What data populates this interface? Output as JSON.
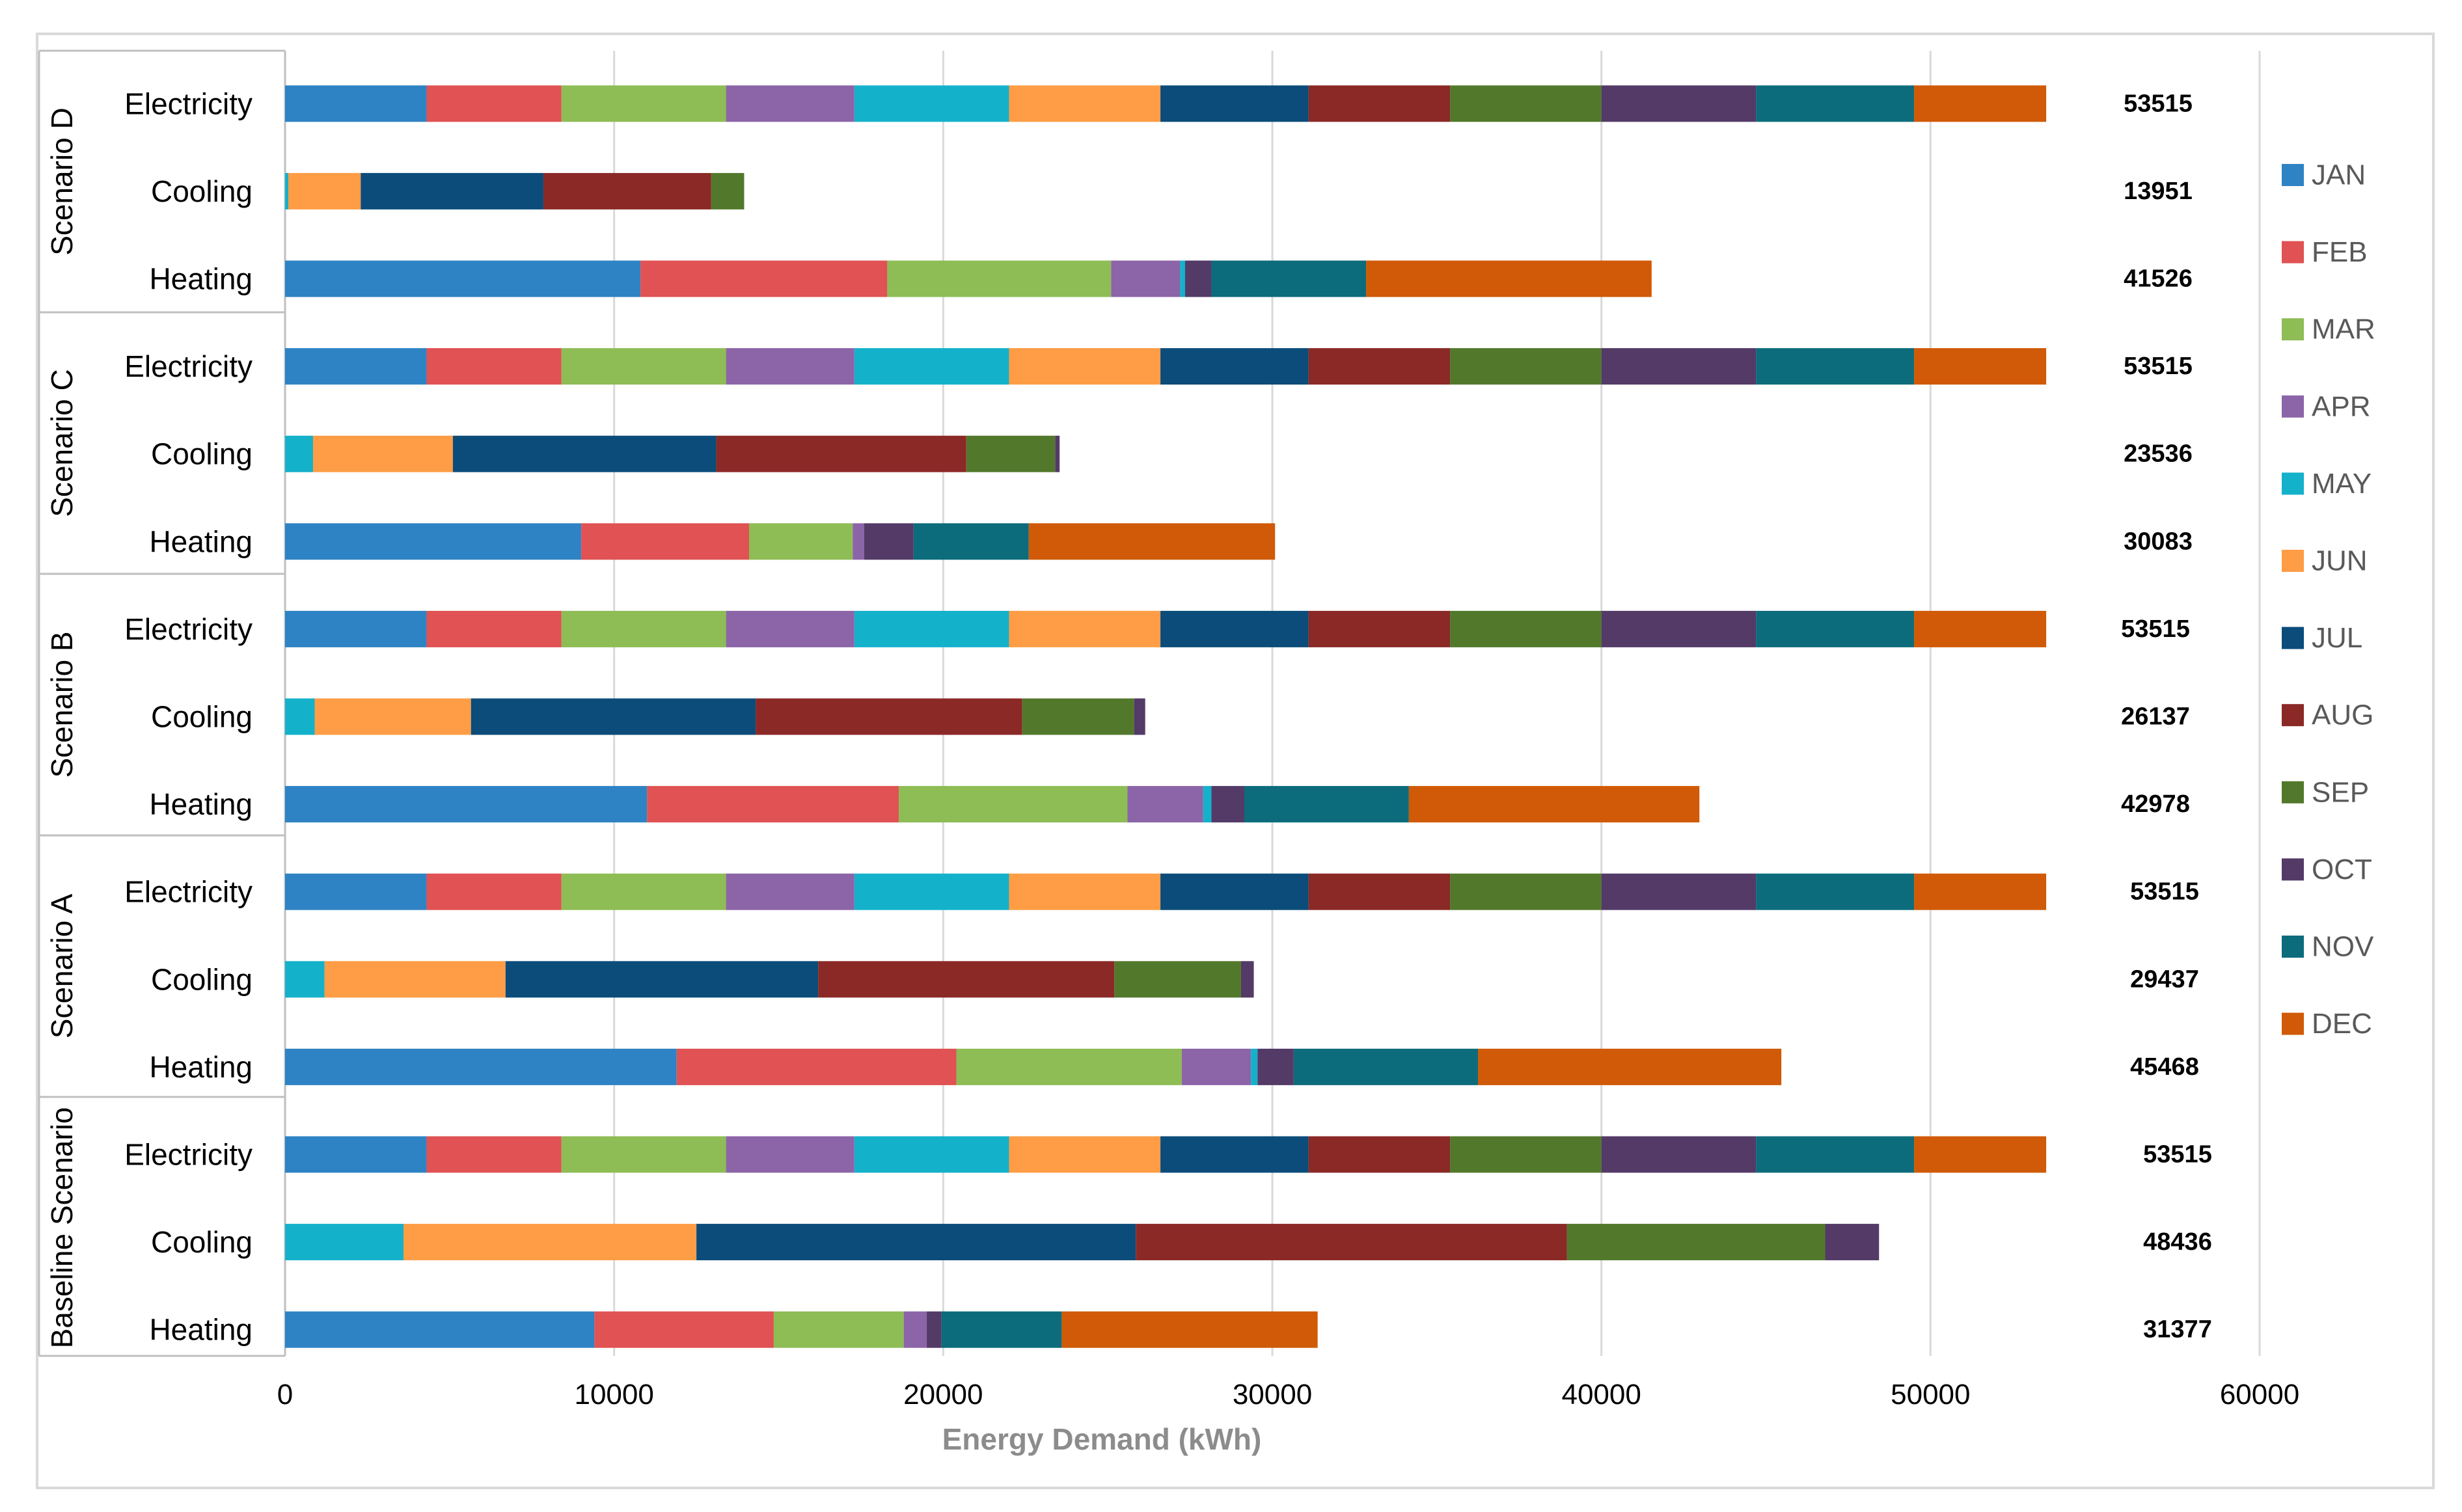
{
  "chart_data": {
    "type": "bar",
    "orientation": "horizontal",
    "stacked": true,
    "title": "",
    "xlabel": "Energy Demand (kWh)",
    "xlim": [
      0,
      60000
    ],
    "xticks": [
      0,
      10000,
      20000,
      30000,
      40000,
      50000,
      60000
    ],
    "grid": true,
    "legend_position": "right",
    "months": [
      "JAN",
      "FEB",
      "MAR",
      "APR",
      "MAY",
      "JUN",
      "JUL",
      "AUG",
      "SEP",
      "OCT",
      "NOV",
      "DEC"
    ],
    "colors": [
      "#2e83c4",
      "#e05253",
      "#8ebc55",
      "#8c64a8",
      "#14b1cb",
      "#fe9d45",
      "#0b4c7a",
      "#8b2927",
      "#52792b",
      "#533a67",
      "#0c6c7b",
      "#d05a07"
    ],
    "groups": [
      {
        "name": "Scenario D",
        "rows": [
          {
            "label": "Electricity",
            "total": "53515",
            "values": [
              4300,
              4100,
              5000,
              3900,
              4700,
              4600,
              4500,
              4300,
              4600,
              4700,
              4800,
              4015
            ]
          },
          {
            "label": "Cooling",
            "total": "13951",
            "values": [
              0,
              0,
              0,
              0,
              100,
              2200,
              5550,
              5100,
              1001,
              0,
              0,
              0
            ]
          },
          {
            "label": "Heating",
            "total": "41526",
            "values": [
              10800,
              7500,
              6800,
              2100,
              150,
              0,
              0,
              0,
              0,
              800,
              4700,
              8676
            ]
          }
        ]
      },
      {
        "name": "Scenario C",
        "rows": [
          {
            "label": "Electricity",
            "total": "53515",
            "values": [
              4300,
              4100,
              5000,
              3900,
              4700,
              4600,
              4500,
              4300,
              4600,
              4700,
              4800,
              4015
            ]
          },
          {
            "label": "Cooling",
            "total": "23536",
            "values": [
              0,
              0,
              0,
              0,
              850,
              4250,
              8000,
              7600,
              2700,
              136,
              0,
              0
            ]
          },
          {
            "label": "Heating",
            "total": "30083",
            "values": [
              9000,
              5100,
              3150,
              350,
              0,
              0,
              0,
              0,
              0,
              1500,
              3500,
              7483
            ]
          }
        ]
      },
      {
        "name": "Scenario B",
        "rows": [
          {
            "label": "Electricity",
            "total": "53515",
            "values": [
              4300,
              4100,
              5000,
              3900,
              4700,
              4600,
              4500,
              4300,
              4600,
              4700,
              4800,
              4015
            ]
          },
          {
            "label": "Cooling",
            "total": "26137",
            "values": [
              0,
              0,
              0,
              0,
              900,
              4750,
              8650,
              8100,
              3400,
              337,
              0,
              0
            ]
          },
          {
            "label": "Heating",
            "total": "42978",
            "values": [
              11000,
              7650,
              6950,
              2300,
              250,
              0,
              0,
              0,
              0,
              1000,
              5000,
              8828
            ]
          }
        ]
      },
      {
        "name": "Scenario A",
        "rows": [
          {
            "label": "Electricity",
            "total": "53515",
            "values": [
              4300,
              4100,
              5000,
              3900,
              4700,
              4600,
              4500,
              4300,
              4600,
              4700,
              4800,
              4015
            ]
          },
          {
            "label": "Cooling",
            "total": "29437",
            "values": [
              0,
              0,
              0,
              0,
              1200,
              5500,
              9500,
              9000,
              3850,
              387,
              0,
              0
            ]
          },
          {
            "label": "Heating",
            "total": "45468",
            "values": [
              11900,
              8500,
              6850,
              2100,
              200,
              0,
              0,
              0,
              0,
              1100,
              5600,
              9218
            ]
          }
        ]
      },
      {
        "name": "Baseline Scenario",
        "rows": [
          {
            "label": "Electricity",
            "total": "53515",
            "values": [
              4300,
              4100,
              5000,
              3900,
              4700,
              4600,
              4500,
              4300,
              4600,
              4700,
              4800,
              4015
            ]
          },
          {
            "label": "Cooling",
            "total": "48436",
            "values": [
              0,
              0,
              0,
              0,
              3600,
              8900,
              13350,
              13100,
              7850,
              1636,
              0,
              0
            ]
          },
          {
            "label": "Heating",
            "total": "31377",
            "values": [
              9400,
              5450,
              3950,
              700,
              0,
              0,
              0,
              0,
              0,
              450,
              3650,
              7777
            ]
          }
        ]
      }
    ]
  }
}
